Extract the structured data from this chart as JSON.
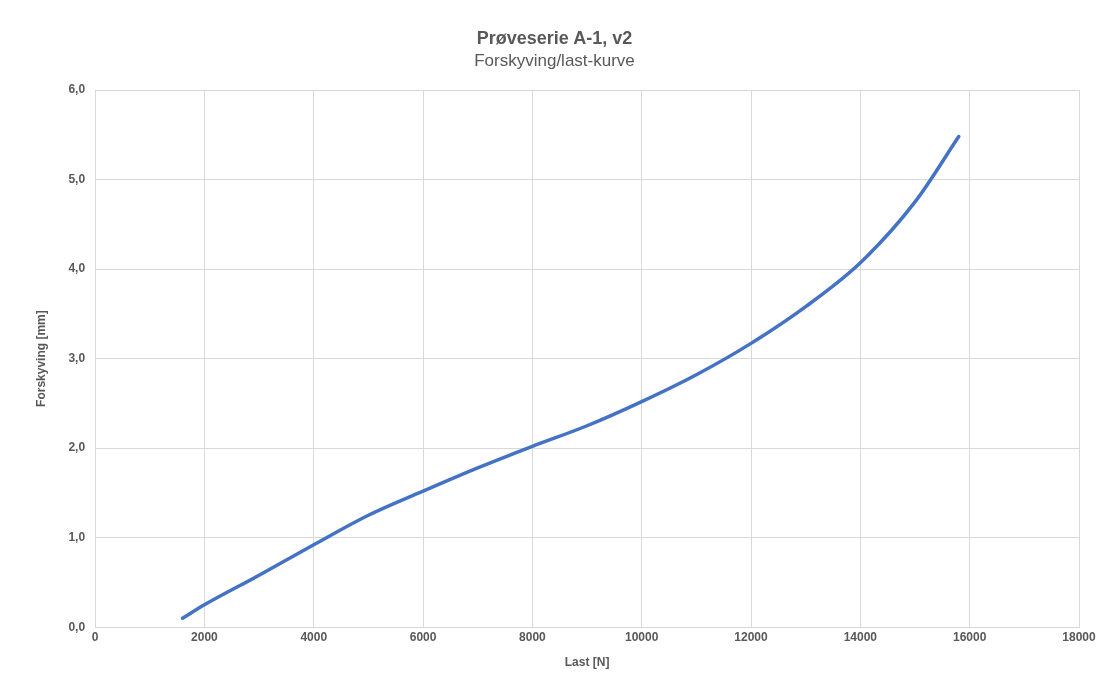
{
  "chart_data": {
    "type": "line",
    "title": "Prøveserie A-1, v2",
    "subtitle": "Forskyving/last-kurve",
    "xlabel": "Last [N]",
    "ylabel": "Forskyving [mm]",
    "x": [
      1600,
      2000,
      3000,
      4000,
      5000,
      6000,
      7000,
      8000,
      9000,
      10000,
      11000,
      12000,
      13000,
      14000,
      15000,
      15800
    ],
    "series": [
      {
        "color": "#4472c4",
        "values": [
          0.1,
          0.25,
          0.58,
          0.92,
          1.25,
          1.52,
          1.78,
          2.02,
          2.25,
          2.52,
          2.82,
          3.17,
          3.58,
          4.07,
          4.75,
          5.48
        ]
      }
    ],
    "xlim": [
      0,
      18000
    ],
    "xticks": [
      0,
      2000,
      4000,
      6000,
      8000,
      10000,
      12000,
      14000,
      16000,
      18000
    ],
    "ylim": [
      0,
      6
    ],
    "yticks": [
      {
        "value": 0,
        "label": "0,0"
      },
      {
        "value": 1,
        "label": "1,0"
      },
      {
        "value": 2,
        "label": "2,0"
      },
      {
        "value": 3,
        "label": "3,0"
      },
      {
        "value": 4,
        "label": "4,0"
      },
      {
        "value": 5,
        "label": "5,0"
      },
      {
        "value": 6,
        "label": "6,0"
      }
    ],
    "grid": true,
    "legend": false,
    "marker": "none",
    "line_style": "solid"
  }
}
